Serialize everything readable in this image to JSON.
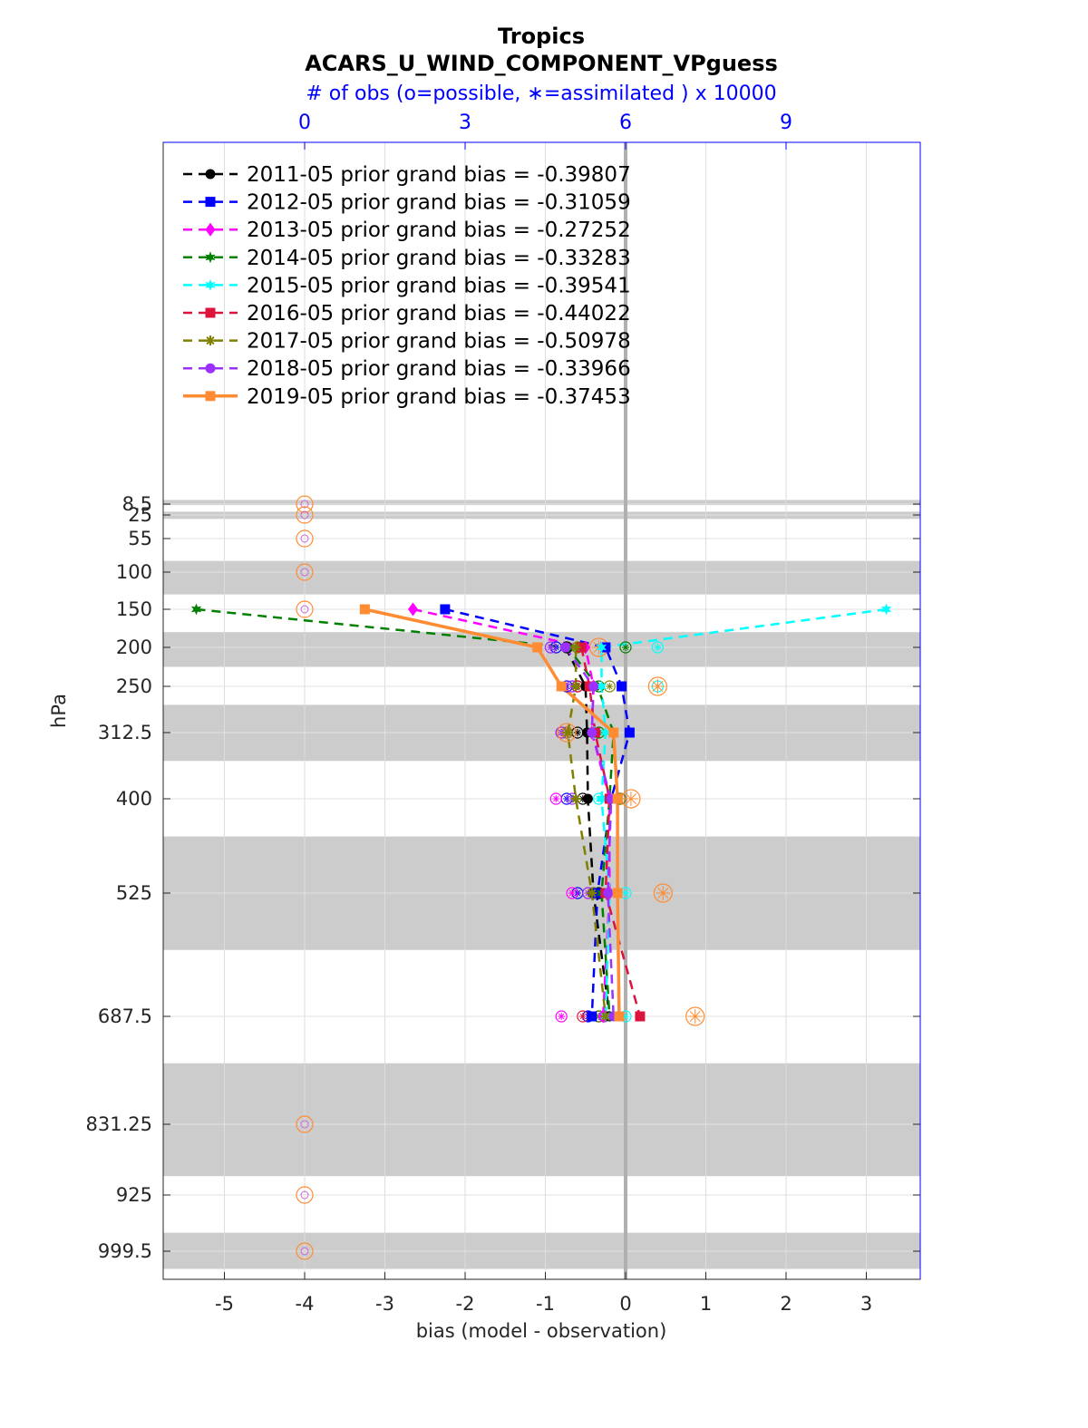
{
  "chart_data": {
    "type": "line",
    "title": "Tropics",
    "subtitle": "ACARS_U_WIND_COMPONENT_VPguess",
    "top_axis_label": "# of obs (o=possible, ∗=assimilated ) x 10000",
    "top_axis_ticks": [
      "0",
      "3",
      "6",
      "9"
    ],
    "top_axis_values": [
      0,
      3,
      6,
      9
    ],
    "xlabel": "bias (model - observation)",
    "ylabel": "hPa",
    "xlim": [
      -5.8,
      3.7
    ],
    "x_ticks": [
      -5,
      -4,
      -3,
      -2,
      -1,
      0,
      1,
      2,
      3
    ],
    "x_tick_labels": [
      "-5",
      "-4",
      "-3",
      "-2",
      "-1",
      "0",
      "1",
      "2",
      "3"
    ],
    "levels": [
      8.5,
      25,
      55,
      100,
      150,
      200,
      250,
      312.5,
      400,
      525,
      687.5,
      831.25,
      925,
      999.5
    ],
    "level_labels": [
      "8.5",
      "25",
      "55",
      "100",
      "150",
      "200",
      "250",
      "312.5",
      "400",
      "525",
      "687.5",
      "831.25",
      "925",
      "999.5"
    ],
    "shaded_bands_hPa": [
      [
        7,
        10
      ],
      [
        20,
        30
      ],
      [
        85,
        130
      ],
      [
        180,
        225
      ],
      [
        275,
        350
      ],
      [
        450,
        600
      ],
      [
        750,
        900
      ],
      [
        975,
        1025
      ]
    ],
    "plot_levels": [
      150,
      200,
      250,
      312.5,
      400,
      525,
      687.5
    ],
    "series": [
      {
        "name": "2011-05 prior grand bias = -0.39807",
        "color": "#000000",
        "marker": "circle",
        "style": "dashed",
        "bias": [
          null,
          -0.75,
          -0.5,
          -0.48,
          -0.47,
          -0.4,
          -0.2
        ],
        "obs_x": [
          null,
          4.9,
          5.1,
          5.1,
          5.2,
          5.5,
          5.5
        ]
      },
      {
        "name": "2012-05 prior grand bias = -0.31059",
        "color": "#0000ff",
        "marker": "square",
        "style": "dashed",
        "bias": [
          -2.25,
          -0.25,
          -0.05,
          0.05,
          -0.18,
          -0.35,
          -0.42
        ],
        "obs_x": [
          null,
          4.7,
          4.9,
          4.8,
          4.9,
          5.1,
          5.3
        ]
      },
      {
        "name": "2013-05 prior grand bias = -0.27252",
        "color": "#ff00ff",
        "marker": "diamond",
        "style": "dashed",
        "bias": [
          -2.65,
          -0.5,
          -0.4,
          -0.42,
          -0.2,
          -0.2,
          -0.28
        ],
        "obs_x": [
          null,
          4.6,
          5.0,
          4.9,
          4.7,
          5.0,
          4.8
        ]
      },
      {
        "name": "2014-05 prior grand bias = -0.33283",
        "color": "#008000",
        "marker": "hexagram",
        "style": "dashed",
        "bias": [
          -5.35,
          -0.72,
          -0.35,
          -0.15,
          -0.2,
          -0.3,
          -0.2
        ],
        "obs_x": [
          null,
          6.0,
          5.5,
          5.5,
          5.9,
          5.4,
          5.5
        ]
      },
      {
        "name": "2015-05 prior grand bias = -0.39541",
        "color": "#00ffff",
        "marker": "hexagram",
        "style": "dashed",
        "bias": [
          3.25,
          -0.3,
          -0.3,
          -0.25,
          -0.3,
          -0.2,
          -0.25
        ],
        "obs_x": [
          null,
          6.6,
          6.6,
          5.4,
          5.5,
          6.0,
          6.0
        ]
      },
      {
        "name": "2016-05 prior grand bias = -0.44022",
        "color": "#dc143c",
        "marker": "square",
        "style": "dashed",
        "bias": [
          null,
          -0.55,
          -0.45,
          -0.38,
          -0.2,
          -0.25,
          0.18
        ],
        "obs_x": [
          null,
          5.1,
          5.1,
          4.8,
          5.9,
          5.3,
          5.2
        ]
      },
      {
        "name": "2017-05 prior grand bias = -0.50978",
        "color": "#808000",
        "marker": "asterisk",
        "style": "dashed",
        "bias": [
          null,
          -0.62,
          -0.62,
          -0.72,
          -0.62,
          -0.42,
          -0.25
        ],
        "obs_x": [
          null,
          5.1,
          5.7,
          4.9,
          5.9,
          5.4,
          5.5
        ]
      },
      {
        "name": "2018-05 prior grand bias = -0.33966",
        "color": "#9b30ff",
        "marker": "circle",
        "style": "dashed",
        "bias": [
          null,
          -0.75,
          -0.4,
          -0.42,
          -0.18,
          -0.22,
          -0.15
        ],
        "obs_x": [
          null,
          4.6,
          5.0,
          4.8,
          5.0,
          5.3,
          5.6
        ]
      },
      {
        "name": "2019-05 prior grand bias = -0.37453",
        "color": "#ff8c32",
        "marker": "square",
        "style": "solid",
        "bias": [
          -3.25,
          -1.1,
          -0.8,
          -0.15,
          -0.1,
          -0.1,
          -0.08
        ],
        "obs_x": [
          null,
          5.5,
          6.6,
          4.9,
          6.1,
          6.7,
          7.3
        ]
      }
    ],
    "no_obs_levels_at_x0": [
      8.5,
      25,
      55,
      100,
      150,
      831.25,
      925,
      999.5
    ]
  }
}
